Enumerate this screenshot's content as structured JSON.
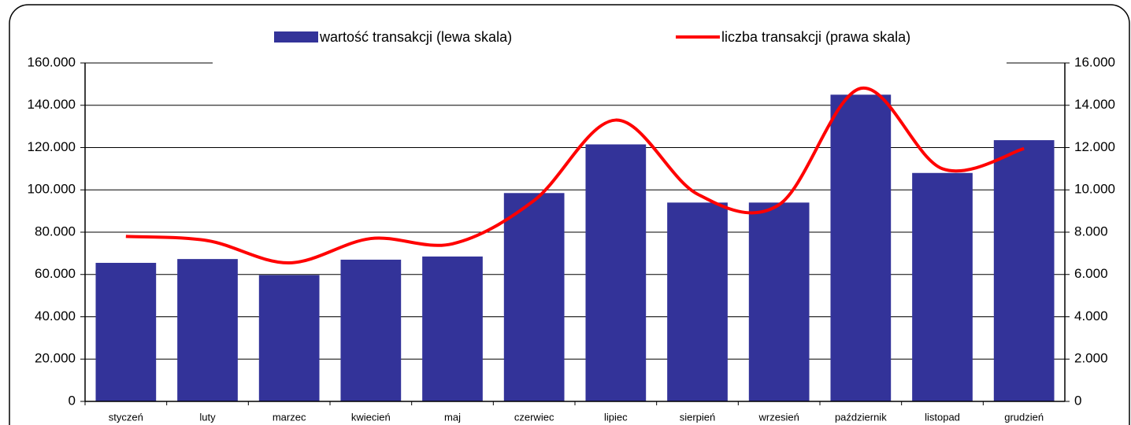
{
  "chart_data": {
    "type": "bar",
    "categories": [
      "styczeń",
      "luty",
      "marzec",
      "kwiecień",
      "maj",
      "czerwiec",
      "lipiec",
      "sierpień",
      "wrzesień",
      "październik",
      "listopad",
      "grudzień"
    ],
    "series": [
      {
        "name": "wartość transakcji (lewa skala)",
        "type": "bar",
        "color": "#333399",
        "values": [
          65500,
          67300,
          59700,
          67000,
          68500,
          98500,
          121500,
          94000,
          94000,
          145000,
          108000,
          123500
        ]
      },
      {
        "name": "liczba transakcji (prawa skala)",
        "type": "line",
        "color": "#ff0000",
        "axis": "y2",
        "smooth": true,
        "values": [
          7800,
          7600,
          6550,
          7700,
          7450,
          9500,
          13300,
          9800,
          9300,
          14800,
          11000,
          11950
        ]
      }
    ],
    "ylim": [
      0,
      160000
    ],
    "yticks": [
      0,
      {
        "value": 20000,
        "label": "20.000"
      },
      {
        "value": 40000,
        "label": "40.000"
      },
      {
        "value": 60000,
        "label": "60.000"
      },
      {
        "value": 80000,
        "label": "80.000"
      },
      {
        "value": 100000,
        "label": "100.000"
      },
      {
        "value": 120000,
        "label": "120.000"
      },
      {
        "value": 140000,
        "label": "140.000"
      },
      {
        "value": 160000,
        "label": "160.000"
      }
    ],
    "y2lim": [
      0,
      16000
    ],
    "y2ticks": [
      0,
      {
        "value": 2000,
        "label": "2.000"
      },
      {
        "value": 4000,
        "label": "4.000"
      },
      {
        "value": 6000,
        "label": "6.000"
      },
      {
        "value": 8000,
        "label": "8.000"
      },
      {
        "value": 10000,
        "label": "10.000"
      },
      {
        "value": 12000,
        "label": "12.000"
      },
      {
        "value": 14000,
        "label": "14.000"
      },
      {
        "value": 16000,
        "label": "16.000"
      }
    ],
    "grid": true,
    "legend": "top"
  }
}
